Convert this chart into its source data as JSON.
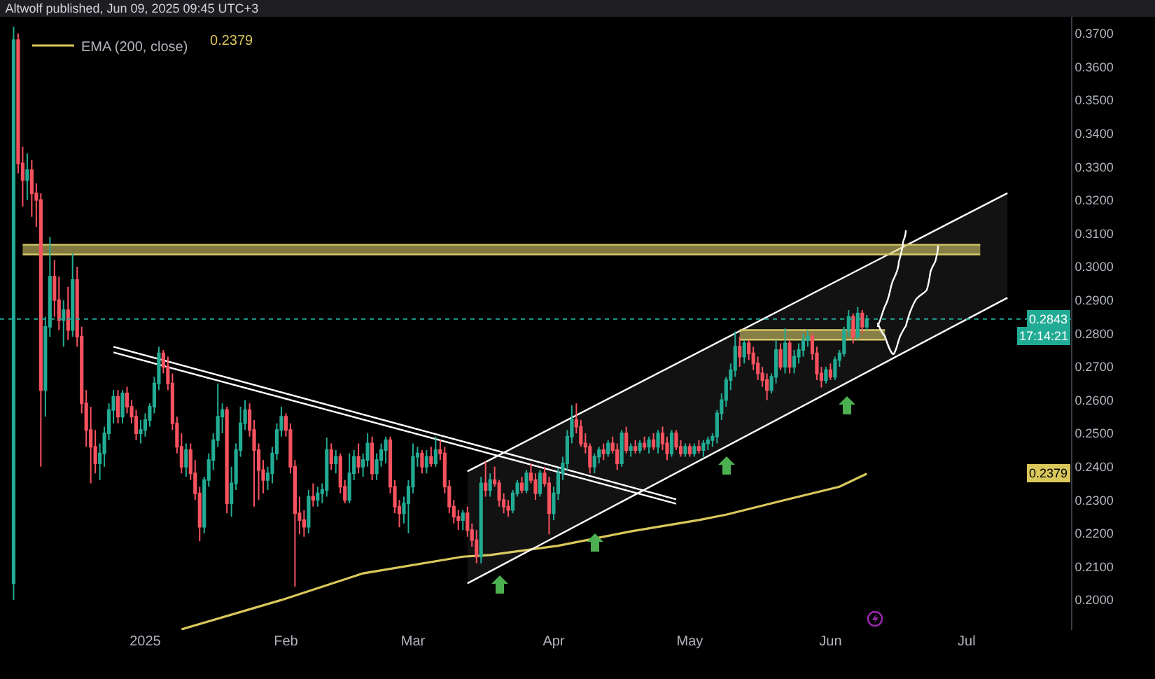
{
  "chart_data": {
    "type": "candlestick",
    "title": "Altwolf published, Jun 09, 2025 09:45 UTC+3",
    "x": [
      "2024-12-03",
      "2024-12-04",
      "2024-12-05",
      "2024-12-06",
      "2024-12-07",
      "2024-12-08",
      "2024-12-09",
      "2024-12-10",
      "2024-12-11",
      "2024-12-12",
      "2024-12-13",
      "2024-12-14",
      "2024-12-15",
      "2024-12-16",
      "2024-12-17",
      "2024-12-18",
      "2024-12-19",
      "2024-12-20",
      "2024-12-21",
      "2024-12-22",
      "2024-12-23",
      "2024-12-24",
      "2024-12-25",
      "2024-12-26",
      "2024-12-27",
      "2024-12-28",
      "2024-12-29",
      "2024-12-30",
      "2024-12-31",
      "2025-01-01",
      "2025-01-02",
      "2025-01-03",
      "2025-01-04",
      "2025-01-05",
      "2025-01-06",
      "2025-01-07",
      "2025-01-08",
      "2025-01-09",
      "2025-01-10",
      "2025-01-11",
      "2025-01-12",
      "2025-01-13",
      "2025-01-14",
      "2025-01-15",
      "2025-01-16",
      "2025-01-17",
      "2025-01-18",
      "2025-01-19",
      "2025-01-20",
      "2025-01-21",
      "2025-01-22",
      "2025-01-23",
      "2025-01-24",
      "2025-01-25",
      "2025-01-26",
      "2025-01-27",
      "2025-01-28",
      "2025-01-29",
      "2025-01-30",
      "2025-01-31",
      "2025-02-01",
      "2025-02-02",
      "2025-02-03",
      "2025-02-04",
      "2025-02-05",
      "2025-02-06",
      "2025-02-07",
      "2025-02-08",
      "2025-02-09",
      "2025-02-10",
      "2025-02-11",
      "2025-02-12",
      "2025-02-13",
      "2025-02-14",
      "2025-02-15",
      "2025-02-16",
      "2025-02-17",
      "2025-02-18",
      "2025-02-19",
      "2025-02-20",
      "2025-02-21",
      "2025-02-22",
      "2025-02-23",
      "2025-02-24",
      "2025-02-25",
      "2025-02-26",
      "2025-02-27",
      "2025-02-28",
      "2025-03-01",
      "2025-03-02",
      "2025-03-03",
      "2025-03-04",
      "2025-03-05",
      "2025-03-06",
      "2025-03-07",
      "2025-03-08",
      "2025-03-09",
      "2025-03-10",
      "2025-03-11",
      "2025-03-12",
      "2025-03-13",
      "2025-03-14",
      "2025-03-15",
      "2025-03-16",
      "2025-03-17",
      "2025-03-18",
      "2025-03-19",
      "2025-03-20",
      "2025-03-21",
      "2025-03-22",
      "2025-03-23",
      "2025-03-24",
      "2025-03-25",
      "2025-03-26",
      "2025-03-27",
      "2025-03-28",
      "2025-03-29",
      "2025-03-30",
      "2025-03-31",
      "2025-04-01",
      "2025-04-02",
      "2025-04-03",
      "2025-04-04",
      "2025-04-05",
      "2025-04-06",
      "2025-04-07",
      "2025-04-08",
      "2025-04-09",
      "2025-04-10",
      "2025-04-11",
      "2025-04-12",
      "2025-04-13",
      "2025-04-14",
      "2025-04-15",
      "2025-04-16",
      "2025-04-17",
      "2025-04-18",
      "2025-04-19",
      "2025-04-20",
      "2025-04-21",
      "2025-04-22",
      "2025-04-23",
      "2025-04-24",
      "2025-04-25",
      "2025-04-26",
      "2025-04-27",
      "2025-04-28",
      "2025-04-29",
      "2025-04-30",
      "2025-05-01",
      "2025-05-02",
      "2025-05-03",
      "2025-05-04",
      "2025-05-05",
      "2025-05-06",
      "2025-05-07",
      "2025-05-08",
      "2025-05-09",
      "2025-05-10",
      "2025-05-11",
      "2025-05-12",
      "2025-05-13",
      "2025-05-14",
      "2025-05-15",
      "2025-05-16",
      "2025-05-17",
      "2025-05-18",
      "2025-05-19",
      "2025-05-20",
      "2025-05-21",
      "2025-05-22",
      "2025-05-23",
      "2025-05-24",
      "2025-05-25",
      "2025-05-26",
      "2025-05-27",
      "2025-05-28",
      "2025-05-29",
      "2025-05-30",
      "2025-05-31",
      "2025-06-01",
      "2025-06-02",
      "2025-06-03",
      "2025-06-04",
      "2025-06-05",
      "2025-06-06",
      "2025-06-07",
      "2025-06-08",
      "2025-06-09"
    ],
    "ohlc": [
      [
        0.205,
        0.372,
        0.2,
        0.368
      ],
      [
        0.368,
        0.37,
        0.328,
        0.331
      ],
      [
        0.331,
        0.336,
        0.318,
        0.326
      ],
      [
        0.326,
        0.334,
        0.32,
        0.329
      ],
      [
        0.329,
        0.332,
        0.315,
        0.322
      ],
      [
        0.322,
        0.325,
        0.312,
        0.32
      ],
      [
        0.32,
        0.322,
        0.24,
        0.263
      ],
      [
        0.263,
        0.285,
        0.255,
        0.282
      ],
      [
        0.282,
        0.309,
        0.279,
        0.297
      ],
      [
        0.297,
        0.302,
        0.285,
        0.29
      ],
      [
        0.29,
        0.297,
        0.281,
        0.284
      ],
      [
        0.284,
        0.29,
        0.276,
        0.287
      ],
      [
        0.287,
        0.294,
        0.278,
        0.281
      ],
      [
        0.281,
        0.304,
        0.279,
        0.296
      ],
      [
        0.296,
        0.3,
        0.276,
        0.279
      ],
      [
        0.279,
        0.282,
        0.256,
        0.259
      ],
      [
        0.259,
        0.263,
        0.246,
        0.251
      ],
      [
        0.251,
        0.258,
        0.235,
        0.246
      ],
      [
        0.246,
        0.251,
        0.238,
        0.241
      ],
      [
        0.241,
        0.247,
        0.236,
        0.244
      ],
      [
        0.244,
        0.252,
        0.24,
        0.25
      ],
      [
        0.25,
        0.259,
        0.248,
        0.257
      ],
      [
        0.257,
        0.263,
        0.253,
        0.261
      ],
      [
        0.261,
        0.263,
        0.253,
        0.255
      ],
      [
        0.255,
        0.263,
        0.253,
        0.262
      ],
      [
        0.262,
        0.264,
        0.256,
        0.258
      ],
      [
        0.258,
        0.26,
        0.253,
        0.255
      ],
      [
        0.255,
        0.257,
        0.248,
        0.25
      ],
      [
        0.25,
        0.254,
        0.247,
        0.251
      ],
      [
        0.251,
        0.256,
        0.249,
        0.254
      ],
      [
        0.254,
        0.259,
        0.252,
        0.258
      ],
      [
        0.258,
        0.267,
        0.256,
        0.265
      ],
      [
        0.265,
        0.276,
        0.263,
        0.274
      ],
      [
        0.274,
        0.275,
        0.268,
        0.27
      ],
      [
        0.27,
        0.273,
        0.263,
        0.265
      ],
      [
        0.265,
        0.268,
        0.251,
        0.253
      ],
      [
        0.253,
        0.255,
        0.244,
        0.246
      ],
      [
        0.246,
        0.25,
        0.238,
        0.24
      ],
      [
        0.24,
        0.247,
        0.237,
        0.245
      ],
      [
        0.245,
        0.247,
        0.236,
        0.238
      ],
      [
        0.238,
        0.242,
        0.23,
        0.232
      ],
      [
        0.232,
        0.234,
        0.2176,
        0.222
      ],
      [
        0.222,
        0.237,
        0.22,
        0.236
      ],
      [
        0.236,
        0.244,
        0.234,
        0.242
      ],
      [
        0.242,
        0.25,
        0.239,
        0.248
      ],
      [
        0.248,
        0.265,
        0.246,
        0.255
      ],
      [
        0.255,
        0.259,
        0.25,
        0.257
      ],
      [
        0.257,
        0.258,
        0.226,
        0.229
      ],
      [
        0.229,
        0.24,
        0.225,
        0.235
      ],
      [
        0.235,
        0.247,
        0.233,
        0.245
      ],
      [
        0.245,
        0.258,
        0.243,
        0.253
      ],
      [
        0.253,
        0.26,
        0.251,
        0.257
      ],
      [
        0.257,
        0.259,
        0.249,
        0.251
      ],
      [
        0.251,
        0.254,
        0.228,
        0.245
      ],
      [
        0.245,
        0.247,
        0.23,
        0.239
      ],
      [
        0.239,
        0.242,
        0.232,
        0.236
      ],
      [
        0.236,
        0.24,
        0.233,
        0.238
      ],
      [
        0.238,
        0.246,
        0.235,
        0.244
      ],
      [
        0.244,
        0.253,
        0.242,
        0.251
      ],
      [
        0.251,
        0.258,
        0.249,
        0.255
      ],
      [
        0.255,
        0.256,
        0.249,
        0.251
      ],
      [
        0.251,
        0.253,
        0.238,
        0.24
      ],
      [
        0.24,
        0.242,
        0.204,
        0.226
      ],
      [
        0.226,
        0.231,
        0.2197,
        0.224
      ],
      [
        0.224,
        0.227,
        0.219,
        0.222
      ],
      [
        0.222,
        0.233,
        0.22,
        0.231
      ],
      [
        0.231,
        0.235,
        0.228,
        0.23
      ],
      [
        0.23,
        0.234,
        0.228,
        0.232
      ],
      [
        0.232,
        0.235,
        0.229,
        0.233
      ],
      [
        0.233,
        0.2487,
        0.231,
        0.245
      ],
      [
        0.245,
        0.247,
        0.239,
        0.241
      ],
      [
        0.241,
        0.245,
        0.238,
        0.243
      ],
      [
        0.243,
        0.244,
        0.232,
        0.234
      ],
      [
        0.234,
        0.236,
        0.229,
        0.23
      ],
      [
        0.23,
        0.244,
        0.229,
        0.238
      ],
      [
        0.238,
        0.245,
        0.236,
        0.243
      ],
      [
        0.243,
        0.247,
        0.238,
        0.24
      ],
      [
        0.24,
        0.244,
        0.237,
        0.242
      ],
      [
        0.242,
        0.25,
        0.24,
        0.247
      ],
      [
        0.247,
        0.249,
        0.236,
        0.238
      ],
      [
        0.238,
        0.244,
        0.236,
        0.242
      ],
      [
        0.242,
        0.247,
        0.24,
        0.245
      ],
      [
        0.245,
        0.249,
        0.241,
        0.248
      ],
      [
        0.248,
        0.249,
        0.232,
        0.234
      ],
      [
        0.234,
        0.236,
        0.226,
        0.228
      ],
      [
        0.228,
        0.23,
        0.2218,
        0.226
      ],
      [
        0.226,
        0.231,
        0.223,
        0.229
      ],
      [
        0.229,
        0.236,
        0.22,
        0.234
      ],
      [
        0.234,
        0.247,
        0.232,
        0.243
      ],
      [
        0.243,
        0.246,
        0.24,
        0.244
      ],
      [
        0.244,
        0.245,
        0.238,
        0.24
      ],
      [
        0.24,
        0.245,
        0.238,
        0.243
      ],
      [
        0.243,
        0.246,
        0.24,
        0.241
      ],
      [
        0.241,
        0.249,
        0.24,
        0.245
      ],
      [
        0.245,
        0.248,
        0.242,
        0.244
      ],
      [
        0.244,
        0.246,
        0.232,
        0.234
      ],
      [
        0.234,
        0.236,
        0.226,
        0.228
      ],
      [
        0.228,
        0.23,
        0.223,
        0.225
      ],
      [
        0.225,
        0.227,
        0.221,
        0.224
      ],
      [
        0.224,
        0.227,
        0.221,
        0.226
      ],
      [
        0.226,
        0.228,
        0.219,
        0.221
      ],
      [
        0.221,
        0.223,
        0.216,
        0.218
      ],
      [
        0.218,
        0.221,
        0.211,
        0.213
      ],
      [
        0.213,
        0.237,
        0.211,
        0.235
      ],
      [
        0.235,
        0.2415,
        0.231,
        0.233
      ],
      [
        0.233,
        0.238,
        0.231,
        0.236
      ],
      [
        0.236,
        0.24,
        0.234,
        0.235
      ],
      [
        0.235,
        0.236,
        0.228,
        0.23
      ],
      [
        0.23,
        0.232,
        0.226,
        0.228
      ],
      [
        0.228,
        0.23,
        0.225,
        0.227
      ],
      [
        0.227,
        0.233,
        0.226,
        0.232
      ],
      [
        0.232,
        0.236,
        0.231,
        0.235
      ],
      [
        0.235,
        0.237,
        0.232,
        0.233
      ],
      [
        0.233,
        0.239,
        0.232,
        0.238
      ],
      [
        0.238,
        0.241,
        0.235,
        0.236
      ],
      [
        0.236,
        0.238,
        0.23,
        0.232
      ],
      [
        0.232,
        0.239,
        0.231,
        0.238
      ],
      [
        0.238,
        0.24,
        0.234,
        0.235
      ],
      [
        0.235,
        0.237,
        0.2197,
        0.226
      ],
      [
        0.226,
        0.234,
        0.224,
        0.232
      ],
      [
        0.232,
        0.2395,
        0.23,
        0.238
      ],
      [
        0.238,
        0.243,
        0.236,
        0.241
      ],
      [
        0.241,
        0.251,
        0.239,
        0.249
      ],
      [
        0.249,
        0.2584,
        0.247,
        0.254
      ],
      [
        0.254,
        0.259,
        0.25,
        0.252
      ],
      [
        0.252,
        0.254,
        0.246,
        0.247
      ],
      [
        0.247,
        0.25,
        0.244,
        0.246
      ],
      [
        0.246,
        0.247,
        0.238,
        0.24
      ],
      [
        0.24,
        0.244,
        0.238,
        0.243
      ],
      [
        0.243,
        0.246,
        0.241,
        0.245
      ],
      [
        0.245,
        0.247,
        0.242,
        0.244
      ],
      [
        0.244,
        0.248,
        0.243,
        0.247
      ],
      [
        0.247,
        0.249,
        0.244,
        0.245
      ],
      [
        0.245,
        0.247,
        0.239,
        0.241
      ],
      [
        0.241,
        0.251,
        0.24,
        0.25
      ],
      [
        0.25,
        0.252,
        0.244,
        0.245
      ],
      [
        0.245,
        0.247,
        0.243,
        0.246
      ],
      [
        0.246,
        0.248,
        0.244,
        0.245
      ],
      [
        0.245,
        0.248,
        0.244,
        0.247
      ],
      [
        0.247,
        0.249,
        0.245,
        0.246
      ],
      [
        0.246,
        0.249,
        0.244,
        0.248
      ],
      [
        0.248,
        0.25,
        0.245,
        0.246
      ],
      [
        0.246,
        0.251,
        0.244,
        0.25
      ],
      [
        0.25,
        0.252,
        0.245,
        0.247
      ],
      [
        0.247,
        0.249,
        0.242,
        0.244
      ],
      [
        0.244,
        0.251,
        0.243,
        0.25
      ],
      [
        0.25,
        0.251,
        0.245,
        0.246
      ],
      [
        0.246,
        0.248,
        0.243,
        0.244
      ],
      [
        0.244,
        0.247,
        0.243,
        0.246
      ],
      [
        0.246,
        0.247,
        0.243,
        0.244
      ],
      [
        0.244,
        0.247,
        0.243,
        0.246
      ],
      [
        0.246,
        0.248,
        0.244,
        0.245
      ],
      [
        0.245,
        0.248,
        0.243,
        0.247
      ],
      [
        0.247,
        0.249,
        0.245,
        0.248
      ],
      [
        0.248,
        0.25,
        0.246,
        0.249
      ],
      [
        0.249,
        0.257,
        0.247,
        0.256
      ],
      [
        0.256,
        0.262,
        0.254,
        0.26
      ],
      [
        0.26,
        0.267,
        0.258,
        0.266
      ],
      [
        0.266,
        0.271,
        0.263,
        0.269
      ],
      [
        0.269,
        0.2806,
        0.267,
        0.276
      ],
      [
        0.276,
        0.279,
        0.27,
        0.273
      ],
      [
        0.273,
        0.278,
        0.271,
        0.277
      ],
      [
        0.277,
        0.278,
        0.272,
        0.274
      ],
      [
        0.274,
        0.276,
        0.269,
        0.271
      ],
      [
        0.271,
        0.273,
        0.266,
        0.268
      ],
      [
        0.268,
        0.27,
        0.264,
        0.266
      ],
      [
        0.266,
        0.268,
        0.26,
        0.263
      ],
      [
        0.263,
        0.268,
        0.262,
        0.267
      ],
      [
        0.267,
        0.278,
        0.265,
        0.275
      ],
      [
        0.275,
        0.277,
        0.269,
        0.27
      ],
      [
        0.27,
        0.2815,
        0.268,
        0.277
      ],
      [
        0.277,
        0.278,
        0.268,
        0.27
      ],
      [
        0.27,
        0.275,
        0.268,
        0.273
      ],
      [
        0.273,
        0.277,
        0.271,
        0.275
      ],
      [
        0.275,
        0.28,
        0.273,
        0.278
      ],
      [
        0.278,
        0.281,
        0.276,
        0.279
      ],
      [
        0.279,
        0.28,
        0.272,
        0.274
      ],
      [
        0.274,
        0.276,
        0.266,
        0.268
      ],
      [
        0.268,
        0.27,
        0.2638,
        0.266
      ],
      [
        0.266,
        0.27,
        0.265,
        0.269
      ],
      [
        0.269,
        0.271,
        0.266,
        0.267
      ],
      [
        0.267,
        0.273,
        0.266,
        0.272
      ],
      [
        0.272,
        0.275,
        0.27,
        0.274
      ],
      [
        0.274,
        0.282,
        0.273,
        0.281
      ],
      [
        0.281,
        0.287,
        0.279,
        0.285
      ],
      [
        0.285,
        0.286,
        0.277,
        0.279
      ],
      [
        0.279,
        0.288,
        0.278,
        0.286
      ],
      [
        0.286,
        0.287,
        0.28,
        0.282
      ],
      [
        0.282,
        0.2855,
        0.281,
        0.2843
      ]
    ],
    "series": [
      {
        "type": "line",
        "name": "EMA (200, close)",
        "color": "#d9c75a",
        "x": [
          "2025-01-09",
          "2025-01-31",
          "2025-02-18",
          "2025-03-12",
          "2025-03-18",
          "2025-04-02",
          "2025-04-18",
          "2025-05-03",
          "2025-05-09",
          "2025-05-22",
          "2025-06-03",
          "2025-06-09"
        ],
        "values": [
          0.1912,
          0.2,
          0.208,
          0.213,
          0.2135,
          0.2163,
          0.2206,
          0.224,
          0.2256,
          0.23,
          0.234,
          0.2379
        ]
      },
      {
        "type": "line",
        "color": "#ffffff",
        "x": [
          "2025-03-13",
          "2025-07-10"
        ],
        "values": [
          0.205,
          0.2907
        ]
      },
      {
        "type": "area",
        "color": "#ffffff",
        "x": [
          "2025-03-13",
          "2025-07-10"
        ],
        "values": [
          0.2386,
          0.3221
        ]
      },
      {
        "type": "line",
        "color": "#ffffff",
        "x": [
          "2024-12-25",
          "2025-04-28"
        ],
        "values": [
          0.276,
          0.2302
        ]
      },
      {
        "type": "line",
        "color": "#ffffff",
        "x": [
          "2024-12-25",
          "2025-04-28"
        ],
        "values": [
          0.2743,
          0.2289
        ]
      },
      {
        "type": "line",
        "color": "#d6c868",
        "x": [
          "2024-12-05",
          "2025-07-04"
        ],
        "values": [
          0.3037,
          0.3037
        ]
      },
      {
        "type": "area",
        "color": "#d6c868",
        "x": [
          "2024-12-05",
          "2025-07-04"
        ],
        "values": [
          0.3066,
          0.3066
        ]
      },
      {
        "type": "line",
        "color": "#d6c868",
        "x": [
          "2025-05-12",
          "2025-06-13"
        ],
        "values": [
          0.2781,
          0.2781
        ]
      },
      {
        "type": "area",
        "color": "#d6c868",
        "x": [
          "2025-05-12",
          "2025-06-13"
        ],
        "values": [
          0.281,
          0.281
        ]
      }
    ],
    "ref_lines": [
      {
        "axis": "y",
        "value": 0.2843,
        "label": "0.2843",
        "color": "#22ab94",
        "line_style": "dotted"
      }
    ],
    "annotations": [
      "0.2379",
      {
        "text": "0.2379",
        "y": 0.2379
      },
      "17:14:21"
    ],
    "legend": "top left",
    "xlim": [
      "2024-11-30",
      "2025-07-24"
    ],
    "xticks": [
      {
        "value": "2025-01-01",
        "label": "2025"
      },
      {
        "value": "2025-02-01",
        "label": "Feb"
      },
      {
        "value": "2025-03-01",
        "label": "Mar"
      },
      {
        "value": "2025-04-01",
        "label": "Apr"
      },
      {
        "value": "2025-05-01",
        "label": "May"
      },
      {
        "value": "2025-06-01",
        "label": "Jun"
      },
      {
        "value": "2025-07-01",
        "label": "Jul"
      }
    ],
    "ylim": [
      0.191,
      0.375
    ],
    "yticks": [
      {
        "value": 0.2,
        "label": "0.2000"
      },
      {
        "value": 0.21,
        "label": "0.2100"
      },
      {
        "value": 0.22,
        "label": "0.2200"
      },
      {
        "value": 0.23,
        "label": "0.2300"
      },
      {
        "value": 0.24,
        "label": "0.2400"
      },
      {
        "value": 0.25,
        "label": "0.2500"
      },
      {
        "value": 0.26,
        "label": "0.2600"
      },
      {
        "value": 0.27,
        "label": "0.2700"
      },
      {
        "value": 0.28,
        "label": "0.2800"
      },
      {
        "value": 0.29,
        "label": "0.2900"
      },
      {
        "value": 0.3,
        "label": "0.3000"
      },
      {
        "value": 0.31,
        "label": "0.3100"
      },
      {
        "value": 0.32,
        "label": "0.3200"
      },
      {
        "value": 0.33,
        "label": "0.3300"
      },
      {
        "value": 0.34,
        "label": "0.3400"
      },
      {
        "value": 0.35,
        "label": "0.3500"
      },
      {
        "value": 0.36,
        "label": "0.3600"
      },
      {
        "value": 0.37,
        "label": "0.3700"
      }
    ]
  }
}
